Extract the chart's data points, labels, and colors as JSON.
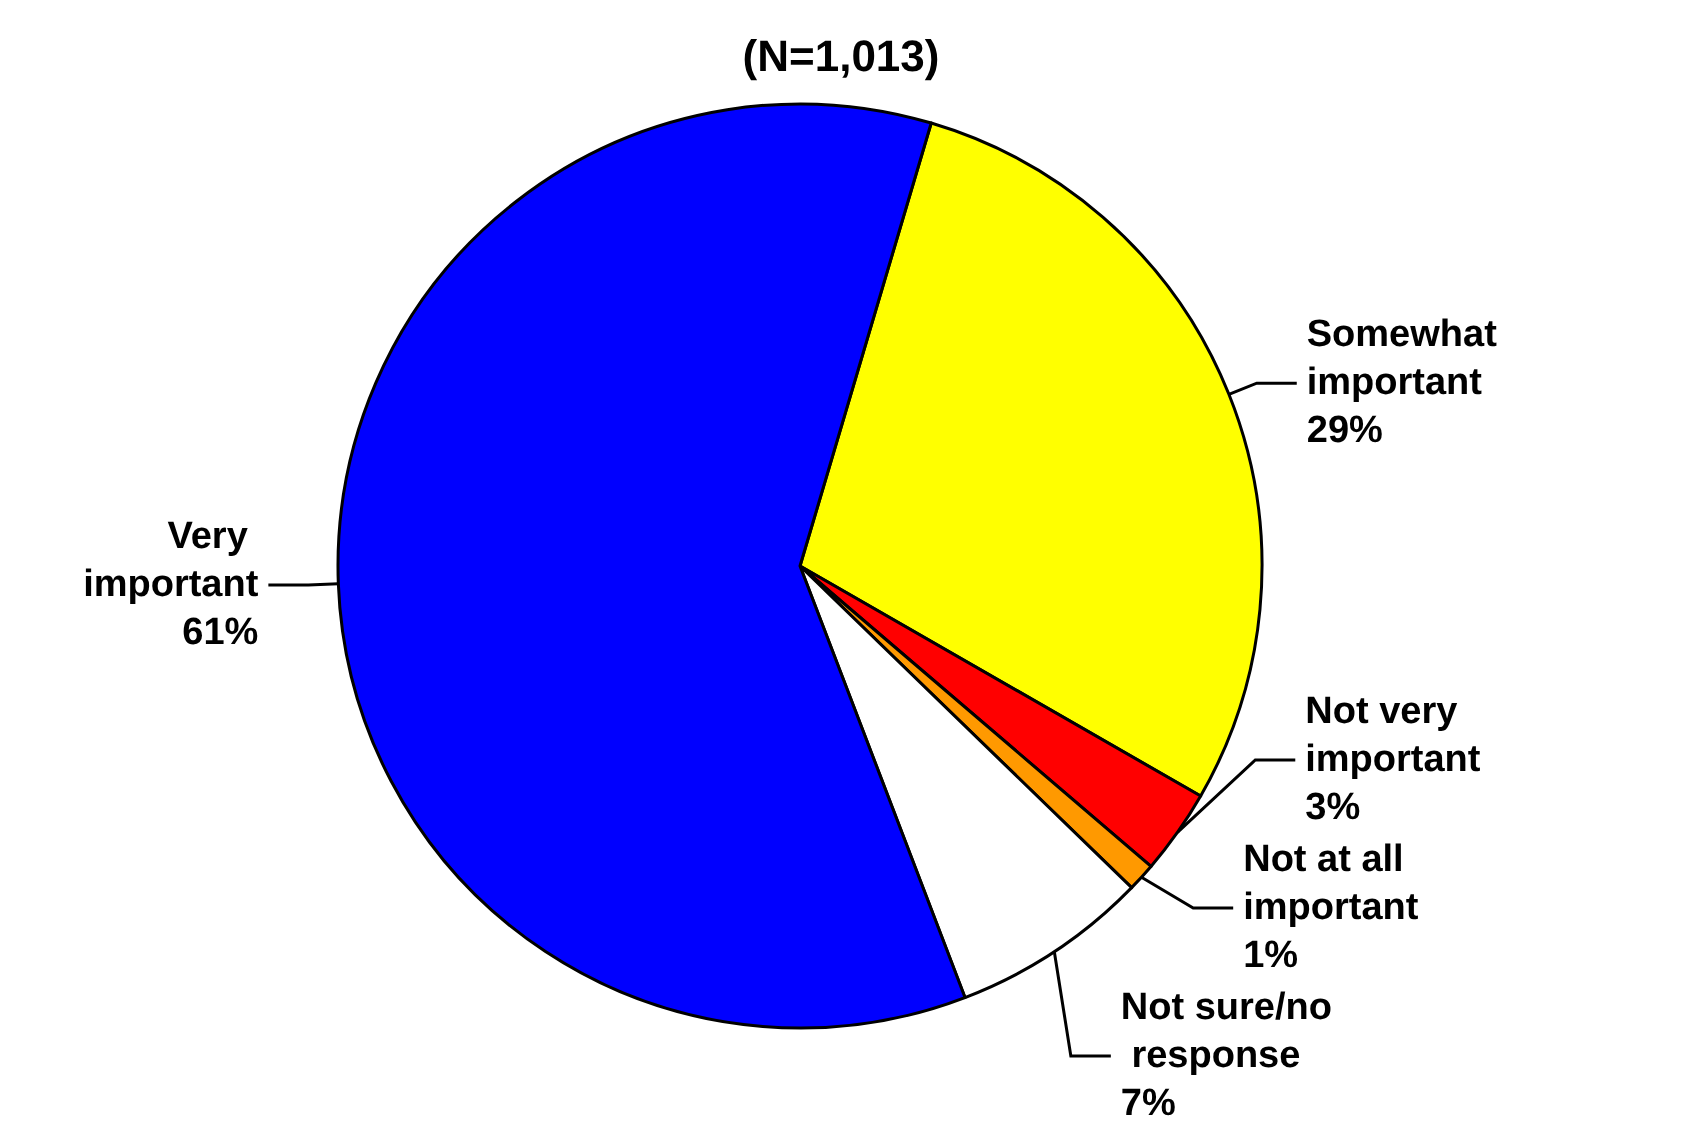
{
  "chart_data": {
    "type": "pie",
    "title": "(N=1,013)",
    "categories": [
      "Somewhat important",
      "Not very important",
      "Not at all important",
      "Not sure/no response",
      "Very important"
    ],
    "values": [
      29,
      3,
      1,
      7,
      61
    ],
    "colors": [
      "#ffff00",
      "#ff0000",
      "#ff9900",
      "#ffffff",
      "#0000ff"
    ],
    "value_labels": [
      "29%",
      "3%",
      "1%",
      "7%",
      "61%"
    ],
    "legend": false
  }
}
